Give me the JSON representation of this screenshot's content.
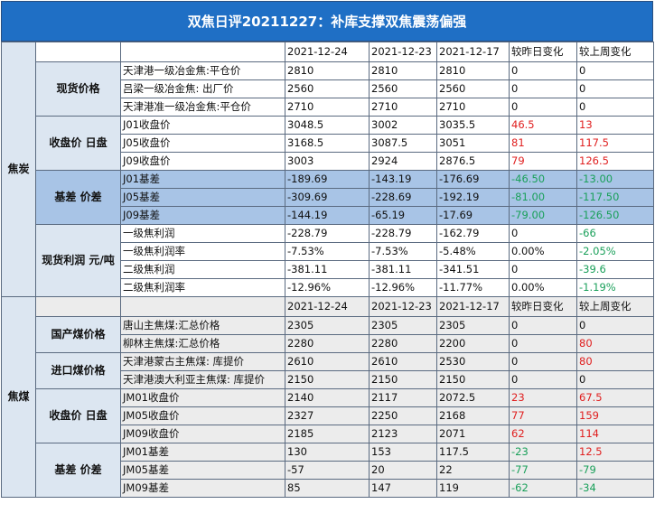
{
  "title": "双焦日评20211227：补库支撑双焦震荡偏强",
  "coke_section": {
    "category": "焦炭",
    "header": [
      "2021-12-24",
      "2021-12-23",
      "2021-12-17",
      "较昨日变化",
      "较上周变化"
    ],
    "groups": [
      {
        "name": "现货价格",
        "style": "light",
        "rows": [
          {
            "label": "天津港一级冶金焦:平仓价",
            "v": [
              "2810",
              "2810",
              "2810",
              "0",
              "0"
            ],
            "c": [
              "",
              ""
            ]
          },
          {
            "label": "吕梁一级冶金焦: 出厂价",
            "v": [
              "2560",
              "2560",
              "2560",
              "0",
              "0"
            ],
            "c": [
              "",
              ""
            ]
          },
          {
            "label": "天津港准一级冶金焦:平仓价",
            "v": [
              "2710",
              "2710",
              "2710",
              "0",
              "0"
            ],
            "c": [
              "",
              ""
            ]
          }
        ]
      },
      {
        "name": "收盘价 日盘",
        "style": "light",
        "rows": [
          {
            "label": "J01收盘价",
            "v": [
              "3048.5",
              "3002",
              "3035.5",
              "46.5",
              "13"
            ],
            "c": [
              "red",
              "red"
            ]
          },
          {
            "label": "J05收盘价",
            "v": [
              "3168.5",
              "3087.5",
              "3051",
              "81",
              "117.5"
            ],
            "c": [
              "red",
              "red"
            ]
          },
          {
            "label": "J09收盘价",
            "v": [
              "3003",
              "2924",
              "2876.5",
              "79",
              "126.5"
            ],
            "c": [
              "red",
              "red"
            ]
          }
        ]
      },
      {
        "name": "基差 价差",
        "style": "dark",
        "rows": [
          {
            "label": "J01基差",
            "v": [
              "-189.69",
              "-143.19",
              "-176.69",
              "-46.50",
              "-13.00"
            ],
            "c": [
              "green",
              "green"
            ]
          },
          {
            "label": "J05基差",
            "v": [
              "-309.69",
              "-228.69",
              "-192.19",
              "-81.00",
              "-117.50"
            ],
            "c": [
              "green",
              "green"
            ]
          },
          {
            "label": "J09基差",
            "v": [
              "-144.19",
              "-65.19",
              "-17.69",
              "-79.00",
              "-126.50"
            ],
            "c": [
              "green",
              "green"
            ]
          }
        ]
      },
      {
        "name": "现货利润 元/吨",
        "style": "light",
        "rows": [
          {
            "label": "一级焦利润",
            "v": [
              "-228.79",
              "-228.79",
              "-162.79",
              "0",
              "-66"
            ],
            "c": [
              "",
              "green"
            ]
          },
          {
            "label": "一级焦利润率",
            "v": [
              "-7.53%",
              "-7.53%",
              "-5.48%",
              "0.00%",
              "-2.05%"
            ],
            "c": [
              "",
              "green"
            ]
          },
          {
            "label": "二级焦利润",
            "v": [
              "-381.11",
              "-381.11",
              "-341.51",
              "0",
              "-39.6"
            ],
            "c": [
              "",
              "green"
            ]
          },
          {
            "label": "二级焦利润率",
            "v": [
              "-12.96%",
              "-12.96%",
              "-11.77%",
              "0.00%",
              "-1.19%"
            ],
            "c": [
              "",
              "green"
            ]
          }
        ]
      }
    ]
  },
  "coal_section": {
    "category": "焦煤",
    "header": [
      "2021-12-24",
      "2021-12-23",
      "2021-12-17",
      "较昨日变化",
      "较上周变化"
    ],
    "groups": [
      {
        "name": "国产煤价格",
        "rows": [
          {
            "label": "唐山主焦煤:汇总价格",
            "v": [
              "2305",
              "2305",
              "2305",
              "0",
              "0"
            ],
            "c": [
              "",
              ""
            ]
          },
          {
            "label": "柳林主焦煤:汇总价格",
            "v": [
              "2280",
              "2280",
              "2200",
              "0",
              "80"
            ],
            "c": [
              "",
              "red"
            ]
          }
        ]
      },
      {
        "name": "进口煤价格",
        "rows": [
          {
            "label": "天津港蒙古主焦煤: 库提价",
            "v": [
              "2610",
              "2610",
              "2530",
              "0",
              "80"
            ],
            "c": [
              "",
              "red"
            ]
          },
          {
            "label": "天津港澳大利亚主焦煤: 库提价",
            "v": [
              "2150",
              "2150",
              "2150",
              "0",
              "0"
            ],
            "c": [
              "",
              ""
            ]
          }
        ]
      },
      {
        "name": "收盘价 日盘",
        "rows": [
          {
            "label": "JM01收盘价",
            "v": [
              "2140",
              "2117",
              "2072.5",
              "23",
              "67.5"
            ],
            "c": [
              "red",
              "red"
            ]
          },
          {
            "label": "JM05收盘价",
            "v": [
              "2327",
              "2250",
              "2168",
              "77",
              "159"
            ],
            "c": [
              "red",
              "red"
            ]
          },
          {
            "label": "JM09收盘价",
            "v": [
              "2185",
              "2123",
              "2071",
              "62",
              "114"
            ],
            "c": [
              "red",
              "red"
            ]
          }
        ]
      },
      {
        "name": "基差 价差",
        "rows": [
          {
            "label": "JM01基差",
            "v": [
              "130",
              "153",
              "117.5",
              "-23",
              "12.5"
            ],
            "c": [
              "green",
              "red"
            ]
          },
          {
            "label": "JM05基差",
            "v": [
              "-57",
              "20",
              "22",
              "-77",
              "-79"
            ],
            "c": [
              "green",
              "green"
            ]
          },
          {
            "label": "JM09基差",
            "v": [
              "85",
              "147",
              "119",
              "-62",
              "-34"
            ],
            "c": [
              "green",
              "green"
            ]
          }
        ]
      }
    ]
  }
}
